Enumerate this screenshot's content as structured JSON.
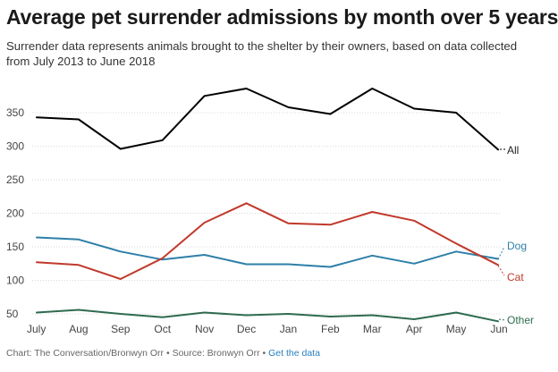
{
  "title": "Average pet surrender admissions by month over 5 years",
  "subtitle": "Surrender data represents animals brought to the shelter by their owners, based on data collected from July 2013 to June 2018",
  "footer": {
    "chart_credit": "Chart: The Conversation/Bronwyn Orr",
    "separator": " • ",
    "source": "Source: Bronwyn Orr",
    "link_text": "Get the data"
  },
  "chart_data": {
    "type": "line",
    "categories": [
      "July",
      "Aug",
      "Sep",
      "Oct",
      "Nov",
      "Dec",
      "Jan",
      "Feb",
      "Mar",
      "Apr",
      "May",
      "Jun"
    ],
    "yticks": [
      50,
      100,
      150,
      200,
      250,
      300,
      350
    ],
    "ylim": [
      40,
      390
    ],
    "grid": true,
    "series": [
      {
        "name": "All",
        "color": "#000000",
        "values": [
          343,
          340,
          296,
          309,
          375,
          386,
          358,
          348,
          386,
          356,
          350,
          295
        ]
      },
      {
        "name": "Dog",
        "color": "#2e7fa8",
        "values": [
          164,
          161,
          143,
          131,
          138,
          124,
          124,
          120,
          137,
          125,
          143,
          132
        ]
      },
      {
        "name": "Cat",
        "color": "#c0392b",
        "values": [
          127,
          123,
          102,
          133,
          186,
          215,
          185,
          183,
          202,
          189,
          155,
          123
        ]
      },
      {
        "name": "Other",
        "color": "#2e6b4f",
        "values": [
          52,
          56,
          50,
          45,
          52,
          48,
          50,
          46,
          48,
          42,
          52,
          39
        ]
      }
    ]
  }
}
